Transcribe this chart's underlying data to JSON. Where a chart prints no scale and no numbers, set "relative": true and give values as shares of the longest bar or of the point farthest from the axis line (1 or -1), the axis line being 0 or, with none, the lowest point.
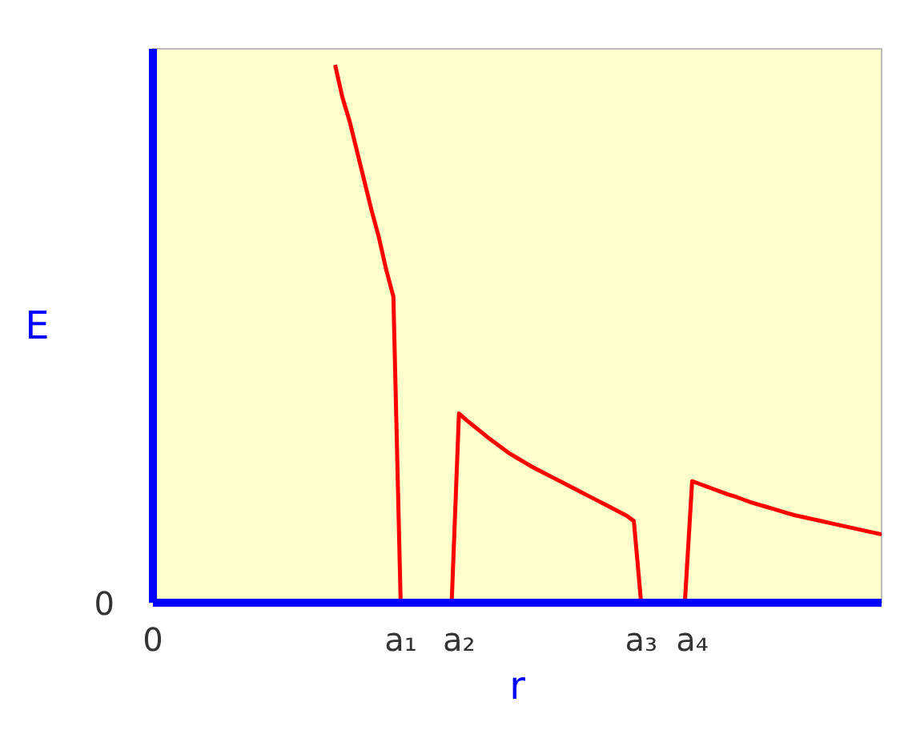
{
  "chart_data": {
    "type": "line",
    "relative": true,
    "xlabel": "r",
    "ylabel": "E",
    "categories": [
      "0",
      null,
      null,
      null,
      null,
      null,
      null,
      null,
      null,
      null,
      null,
      null,
      null,
      null,
      null,
      null,
      null,
      null,
      null,
      null,
      null,
      null,
      null,
      null,
      null,
      null,
      null,
      null,
      null,
      null,
      null,
      null,
      null,
      null,
      "a₁",
      null,
      null,
      null,
      null,
      null,
      null,
      null,
      "a₂",
      null,
      null,
      null,
      null,
      null,
      null,
      null,
      null,
      null,
      null,
      null,
      null,
      null,
      null,
      null,
      null,
      null,
      null,
      null,
      null,
      null,
      null,
      null,
      null,
      "a₃",
      null,
      null,
      null,
      null,
      null,
      null,
      "a₄",
      null,
      null,
      null,
      null,
      null,
      null,
      null,
      null,
      null,
      null,
      null,
      null,
      null,
      null,
      null,
      null,
      null,
      null,
      null,
      null,
      null,
      null,
      null,
      null,
      null,
      null
    ],
    "series": [
      {
        "color": "#ff0000",
        "values": [
          null,
          null,
          null,
          null,
          null,
          null,
          null,
          null,
          null,
          null,
          null,
          null,
          null,
          null,
          null,
          null,
          null,
          null,
          null,
          null,
          null,
          null,
          null,
          null,
          null,
          1.0,
          0.94,
          0.895,
          0.84,
          0.785,
          0.73,
          0.68,
          0.62,
          0.569,
          0,
          null,
          null,
          null,
          null,
          null,
          null,
          0,
          0.352,
          0.34,
          0.329,
          0.318,
          0.307,
          0.297,
          0.287,
          0.277,
          0.269,
          0.261,
          0.253,
          0.246,
          0.239,
          0.232,
          0.225,
          0.218,
          0.211,
          0.204,
          0.197,
          0.19,
          0.183,
          0.176,
          0.169,
          0.162,
          0.152,
          0,
          null,
          null,
          null,
          null,
          null,
          0,
          0.226,
          0.221,
          0.216,
          0.211,
          0.206,
          0.201,
          0.197,
          0.192,
          0.187,
          0.183,
          0.179,
          0.175,
          0.171,
          0.167,
          0.163,
          0.16,
          0.157,
          0.154,
          0.151,
          0.148,
          0.145,
          0.142,
          0.139,
          0.136,
          0.133,
          0.13,
          0.127
        ]
      }
    ],
    "annotations": [
      "0"
    ],
    "grid": false,
    "marker": "none",
    "line_style": "solid"
  }
}
